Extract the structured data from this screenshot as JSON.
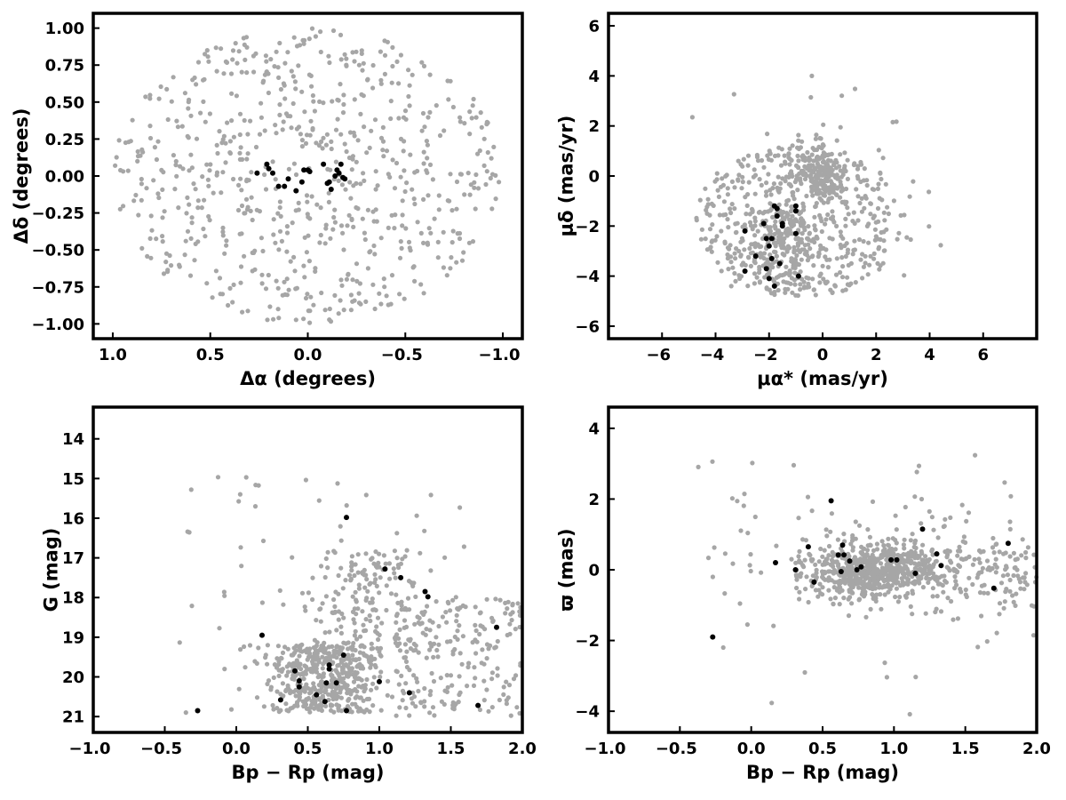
{
  "figure": {
    "background": "#ffffff",
    "background_color": "#a6a6a6",
    "member_color": "#000000"
  },
  "chart_data": [
    {
      "id": "radec",
      "type": "scatter",
      "xlabel": "Δα (degrees)",
      "ylabel": "Δδ (degrees)",
      "xlim": [
        1.1,
        -1.1
      ],
      "ylim": [
        -1.1,
        1.1
      ],
      "x_inverted": true,
      "xticks": [
        1.0,
        0.5,
        0.0,
        -0.5,
        -1.0
      ],
      "xtick_labels": [
        "1.0",
        "0.5",
        "0.0",
        "−0.5",
        "−1.0"
      ],
      "yticks": [
        -1.0,
        -0.75,
        -0.5,
        -0.25,
        0.0,
        0.25,
        0.5,
        0.75,
        1.0
      ],
      "ytick_labels": [
        "−1.00",
        "−0.75",
        "−0.50",
        "−0.25",
        "0.00",
        "0.25",
        "0.50",
        "0.75",
        "1.00"
      ],
      "grid": false,
      "legend": "none",
      "series": [
        {
          "role": "field",
          "color": "#a6a6a6",
          "shape": "uniform disk",
          "center": [
            0,
            0
          ],
          "radius": 1.0,
          "count": 700
        },
        {
          "role": "members",
          "color": "#000000",
          "points": [
            [
              0.26,
              0.02
            ],
            [
              0.21,
              0.08
            ],
            [
              0.2,
              0.05
            ],
            [
              0.18,
              0.02
            ],
            [
              0.15,
              -0.07
            ],
            [
              0.12,
              -0.07
            ],
            [
              0.1,
              -0.02
            ],
            [
              0.06,
              -0.1
            ],
            [
              0.03,
              -0.04
            ],
            [
              0.02,
              0.04
            ],
            [
              0.0,
              0.04
            ],
            [
              -0.01,
              0.03
            ],
            [
              -0.08,
              0.08
            ],
            [
              -0.1,
              -0.05
            ],
            [
              -0.11,
              -0.04
            ],
            [
              -0.12,
              -0.09
            ],
            [
              -0.14,
              0.0
            ],
            [
              -0.15,
              0.04
            ],
            [
              -0.16,
              0.02
            ],
            [
              -0.17,
              0.08
            ],
            [
              -0.18,
              -0.01
            ],
            [
              -0.19,
              -0.02
            ]
          ]
        }
      ]
    },
    {
      "id": "pm",
      "type": "scatter",
      "xlabel": "μα* (mas/yr)",
      "ylabel": "μδ (mas/yr)",
      "xlim": [
        -8,
        8
      ],
      "ylim": [
        -6.5,
        6.5
      ],
      "xticks": [
        -6,
        -4,
        -2,
        0,
        2,
        4,
        6
      ],
      "xtick_labels": [
        "−6",
        "−4",
        "−2",
        "0",
        "2",
        "4",
        "6"
      ],
      "yticks": [
        -6,
        -4,
        -2,
        0,
        2,
        4,
        6
      ],
      "ytick_labels": [
        "−6",
        "−4",
        "−2",
        "0",
        "2",
        "4",
        "6"
      ],
      "grid": false,
      "legend": "none",
      "series": [
        {
          "role": "field",
          "color": "#a6a6a6",
          "shape": "ellipse plus clumps",
          "center": [
            -0.5,
            -1.5
          ],
          "count": 900
        },
        {
          "role": "members",
          "color": "#000000",
          "points": [
            [
              -2.9,
              -2.2
            ],
            [
              -2.9,
              -3.8
            ],
            [
              -2.5,
              -3.2
            ],
            [
              -2.2,
              -1.9
            ],
            [
              -2.1,
              -2.5
            ],
            [
              -2.1,
              -3.7
            ],
            [
              -2.0,
              -2.8
            ],
            [
              -2.0,
              -4.1
            ],
            [
              -1.9,
              -2.5
            ],
            [
              -1.9,
              -3.3
            ],
            [
              -1.8,
              -1.2
            ],
            [
              -1.8,
              -4.4
            ],
            [
              -1.7,
              -1.3
            ],
            [
              -1.7,
              -1.6
            ],
            [
              -1.6,
              -3.5
            ],
            [
              -1.5,
              -2.0
            ],
            [
              -1.5,
              -1.9
            ],
            [
              -1.0,
              -1.2
            ],
            [
              -1.0,
              -1.4
            ],
            [
              -1.0,
              -2.3
            ],
            [
              -0.9,
              -4.0
            ]
          ]
        }
      ]
    },
    {
      "id": "cmd",
      "type": "scatter",
      "xlabel": "Bp − Rp (mag)",
      "ylabel": "G (mag)",
      "xlim": [
        -1.0,
        2.0
      ],
      "ylim": [
        21.4,
        13.2
      ],
      "y_inverted": true,
      "xticks": [
        -1.0,
        -0.5,
        0.0,
        0.5,
        1.0,
        1.5,
        2.0
      ],
      "xtick_labels": [
        "−1.0",
        "−0.5",
        "0.0",
        "0.5",
        "1.0",
        "1.5",
        "2.0"
      ],
      "yticks": [
        14,
        15,
        16,
        17,
        18,
        19,
        20,
        21
      ],
      "ytick_labels": [
        "14",
        "15",
        "16",
        "17",
        "18",
        "19",
        "20",
        "21"
      ],
      "grid": false,
      "legend": "none",
      "series": [
        {
          "role": "field",
          "color": "#a6a6a6",
          "shape": "color-magnitude sequence",
          "count": 900
        },
        {
          "role": "members",
          "color": "#000000",
          "points": [
            [
              -0.27,
              20.85
            ],
            [
              0.18,
              18.95
            ],
            [
              0.31,
              20.58
            ],
            [
              0.41,
              19.85
            ],
            [
              0.44,
              20.25
            ],
            [
              0.44,
              20.1
            ],
            [
              0.56,
              20.45
            ],
            [
              0.62,
              20.62
            ],
            [
              0.63,
              20.15
            ],
            [
              0.65,
              19.8
            ],
            [
              0.65,
              19.7
            ],
            [
              0.7,
              20.15
            ],
            [
              0.75,
              19.45
            ],
            [
              0.77,
              15.98
            ],
            [
              0.77,
              20.85
            ],
            [
              1.0,
              20.12
            ],
            [
              1.04,
              17.28
            ],
            [
              1.15,
              17.5
            ],
            [
              1.21,
              20.4
            ],
            [
              1.32,
              17.85
            ],
            [
              1.34,
              17.98
            ],
            [
              1.69,
              20.72
            ],
            [
              1.82,
              18.75
            ]
          ]
        }
      ]
    },
    {
      "id": "parallax",
      "type": "scatter",
      "xlabel": "Bp − Rp (mag)",
      "ylabel": "ϖ (mas)",
      "xlim": [
        -1.0,
        2.0
      ],
      "ylim": [
        -4.6,
        4.6
      ],
      "xticks": [
        -1.0,
        -0.5,
        0.0,
        0.5,
        1.0,
        1.5,
        2.0
      ],
      "xtick_labels": [
        "−1.0",
        "−0.5",
        "0.0",
        "0.5",
        "1.0",
        "1.5",
        "2.0"
      ],
      "yticks": [
        -4,
        -2,
        0,
        2,
        4
      ],
      "ytick_labels": [
        "−4",
        "−2",
        "0",
        "2",
        "4"
      ],
      "grid": false,
      "legend": "none",
      "series": [
        {
          "role": "field",
          "color": "#a6a6a6",
          "shape": "horizontal band",
          "count": 900
        },
        {
          "role": "members",
          "color": "#000000",
          "points": [
            [
              -0.27,
              -1.9
            ],
            [
              0.17,
              0.2
            ],
            [
              0.31,
              0.0
            ],
            [
              0.4,
              0.65
            ],
            [
              0.44,
              -0.35
            ],
            [
              0.56,
              1.95
            ],
            [
              0.61,
              0.42
            ],
            [
              0.63,
              -0.05
            ],
            [
              0.64,
              0.7
            ],
            [
              0.65,
              0.42
            ],
            [
              0.69,
              0.25
            ],
            [
              0.74,
              0.0
            ],
            [
              0.77,
              0.08
            ],
            [
              0.98,
              0.28
            ],
            [
              1.02,
              0.28
            ],
            [
              1.15,
              -0.1
            ],
            [
              1.2,
              1.15
            ],
            [
              1.3,
              0.45
            ],
            [
              1.33,
              0.12
            ],
            [
              1.7,
              -0.52
            ],
            [
              1.8,
              0.75
            ]
          ]
        }
      ]
    }
  ]
}
